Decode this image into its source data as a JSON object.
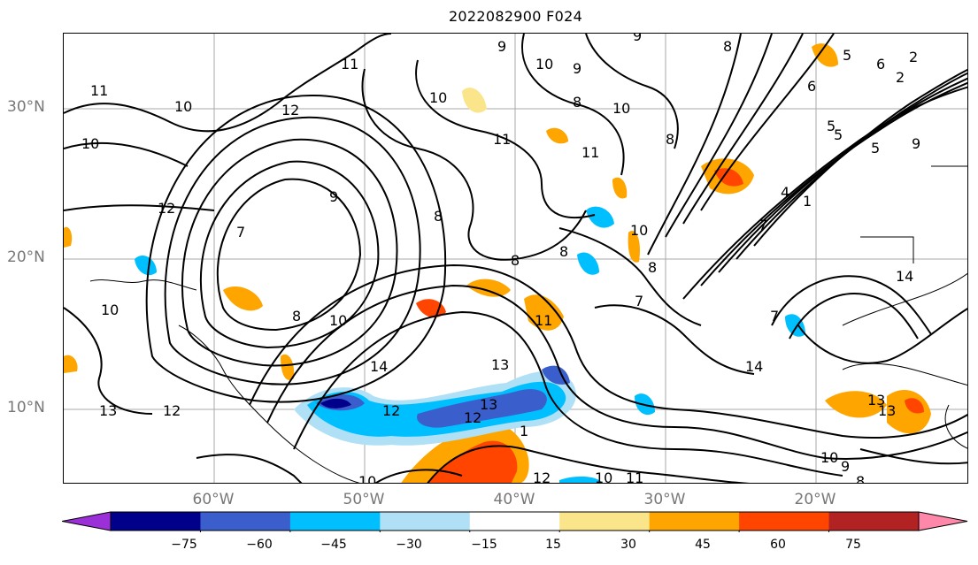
{
  "title": "2022082900 F024",
  "lat_labels": [
    "30°N",
    "20°N",
    "10°N"
  ],
  "lon_labels": [
    "60°W",
    "50°W",
    "40°W",
    "30°W",
    "20°W"
  ],
  "colorbar": {
    "ticks": [
      "−75",
      "−60",
      "−45",
      "−30",
      "−15",
      "15",
      "30",
      "45",
      "60",
      "75"
    ],
    "colors": [
      "#9b30d9",
      "#00008b",
      "#3a5fcd",
      "#00bfff",
      "#b0e0f5",
      "#ffffff",
      "#fbe58a",
      "#ffa500",
      "#ff4500",
      "#b22222",
      "#ff88aa"
    ]
  },
  "contour_labels": [
    "11",
    "12",
    "10",
    "9",
    "10",
    "8",
    "11",
    "9",
    "10",
    "9",
    "8",
    "10",
    "11",
    "8",
    "11",
    "10",
    "5",
    "6",
    "2",
    "2",
    "9",
    "4",
    "6",
    "5",
    "5",
    "5",
    "1",
    "12",
    "9",
    "7",
    "8",
    "10",
    "8",
    "7",
    "8",
    "10",
    "8",
    "11",
    "10",
    "14",
    "13",
    "8",
    "7",
    "7",
    "14",
    "13",
    "12",
    "14",
    "13",
    "1",
    "12",
    "10",
    "11",
    "12",
    "13",
    "10",
    "9",
    "8",
    "10",
    "13",
    "12"
  ]
}
